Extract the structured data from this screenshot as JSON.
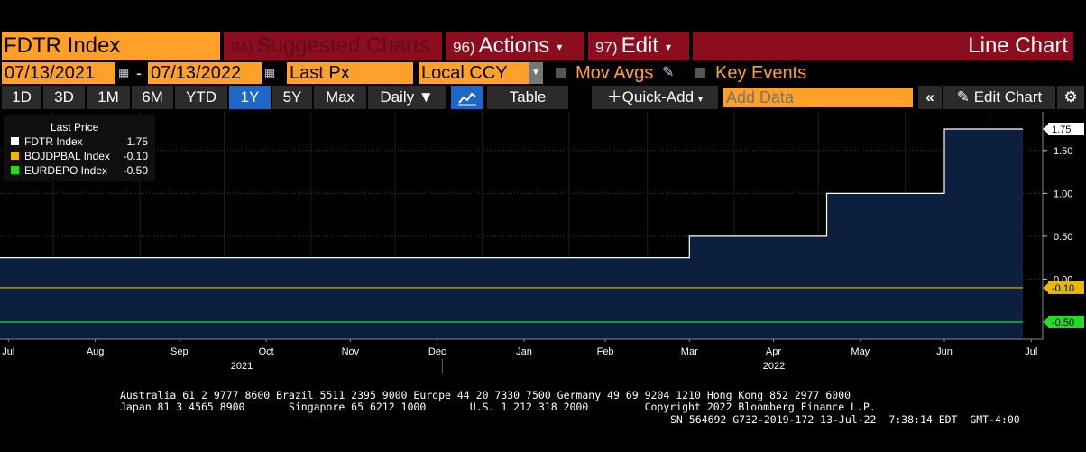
{
  "toolbar": {
    "ticker": "FDTR Index",
    "suggested": {
      "num": "94)",
      "label": "Suggested Charts"
    },
    "actions": {
      "num": "96)",
      "label": "Actions"
    },
    "edit": {
      "num": "97)",
      "label": "Edit"
    },
    "chart_type": "Line Chart"
  },
  "settings": {
    "start_date": "07/13/2021",
    "end_date": "07/13/2022",
    "dash": "-",
    "field": "Last Px",
    "currency": "Local CCY",
    "mov_avgs": "Mov Avgs",
    "key_events": "Key Events"
  },
  "periods": [
    "1D",
    "3D",
    "1M",
    "6M",
    "YTD",
    "1Y",
    "5Y",
    "Max"
  ],
  "selected_period": "1Y",
  "frequency": "Daily",
  "table_label": "Table",
  "quick_add": "Quick-Add",
  "add_data_placeholder": "Add Data",
  "edit_chart": "Edit Chart",
  "legend": {
    "header": "Last Price",
    "items": [
      {
        "name": "FDTR Index",
        "value": "1.75",
        "color": "#ffffff"
      },
      {
        "name": "BOJDPBAL Index",
        "value": "-0.10",
        "color": "#e6b800"
      },
      {
        "name": "EURDEPO Index",
        "value": "-0.50",
        "color": "#22dd22"
      }
    ]
  },
  "chart_data": {
    "type": "line",
    "title": "",
    "x_range": [
      "2021-07-13",
      "2022-07-13"
    ],
    "ylim": [
      -0.7,
      1.95
    ],
    "y_ticks": [
      "1.50",
      "1.00",
      "0.50",
      "0.00"
    ],
    "x_month_labels": [
      "Jul",
      "Aug",
      "Sep",
      "Oct",
      "Nov",
      "Dec",
      "Jan",
      "Feb",
      "Mar",
      "Apr",
      "May",
      "Jun",
      "Jul"
    ],
    "x_year_labels": [
      "2021",
      "2022"
    ],
    "series": [
      {
        "name": "FDTR Index",
        "color": "#ffffff",
        "fill": "#0c1f3f",
        "step": true,
        "x": [
          "2021-07-13",
          "2022-03-16",
          "2022-05-04",
          "2022-06-15",
          "2022-07-13"
        ],
        "y": [
          0.25,
          0.5,
          1.0,
          1.75,
          1.75
        ],
        "last_label": "1.75"
      },
      {
        "name": "BOJDPBAL Index",
        "color": "#e6b800",
        "step": true,
        "x": [
          "2021-07-13",
          "2022-07-13"
        ],
        "y": [
          -0.1,
          -0.1
        ],
        "last_label": "-0.10"
      },
      {
        "name": "EURDEPO Index",
        "color": "#22dd22",
        "step": true,
        "x": [
          "2021-07-13",
          "2022-07-13"
        ],
        "y": [
          -0.5,
          -0.5
        ],
        "last_label": "-0.50"
      }
    ]
  },
  "footer": {
    "line1": "Australia 61 2 9777 8600 Brazil 5511 2395 9000 Europe 44 20 7330 7500 Germany 49 69 9204 1210 Hong Kong 852 2977 6000",
    "line2": "Japan 81 3 4565 8900       Singapore 65 6212 1000       U.S. 1 212 318 2000         Copyright 2022 Bloomberg Finance L.P.",
    "line3": "SN 564692 G732-2019-172 13-Jul-22  7:38:14 EDT  GMT-4:00"
  }
}
